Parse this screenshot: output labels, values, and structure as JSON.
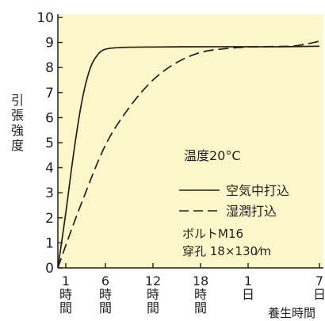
{
  "chart_data": {
    "type": "line",
    "title": "",
    "ylabel": "引張強度",
    "xlabel": "養生時間",
    "ylim": [
      0,
      10
    ],
    "y_ticks": [
      "0",
      "1",
      "2",
      "3",
      "4",
      "5",
      "6",
      "7",
      "8",
      "9",
      "10"
    ],
    "x_categories": [
      {
        "label": "1時間",
        "x": 1
      },
      {
        "label": "6時間",
        "x": 6
      },
      {
        "label": "12時間",
        "x": 12
      },
      {
        "label": "18時間",
        "x": 18
      },
      {
        "label": "1日",
        "x": 24
      },
      {
        "label": "7日",
        "x": 33
      }
    ],
    "grid": false,
    "legend_placement": "center-right",
    "series": [
      {
        "name": "空気中打込",
        "style": "solid",
        "points": [
          [
            0,
            0
          ],
          [
            1,
            2.2
          ],
          [
            2,
            4.6
          ],
          [
            3,
            6.6
          ],
          [
            4,
            7.9
          ],
          [
            5,
            8.5
          ],
          [
            6,
            8.73
          ],
          [
            8,
            8.8
          ],
          [
            12,
            8.82
          ],
          [
            18,
            8.83
          ],
          [
            24,
            8.83
          ],
          [
            28,
            8.83
          ],
          [
            33,
            8.85
          ]
        ]
      },
      {
        "name": "湿潤打込",
        "style": "dashed",
        "points": [
          [
            0,
            0
          ],
          [
            1,
            0.9
          ],
          [
            3,
            2.6
          ],
          [
            6,
            4.9
          ],
          [
            9,
            6.4
          ],
          [
            12,
            7.5
          ],
          [
            15,
            8.2
          ],
          [
            18,
            8.6
          ],
          [
            21,
            8.75
          ],
          [
            24,
            8.82
          ],
          [
            27,
            8.84
          ],
          [
            30,
            8.87
          ],
          [
            33,
            9.05
          ]
        ]
      }
    ],
    "annotations": {
      "temperature": "温度20°C",
      "bolt": "ボルトM16",
      "hole": "穿孔 18×130⁄m"
    }
  },
  "colors": {
    "plot_background": "#fbf7c8",
    "ink": "#231f20"
  }
}
